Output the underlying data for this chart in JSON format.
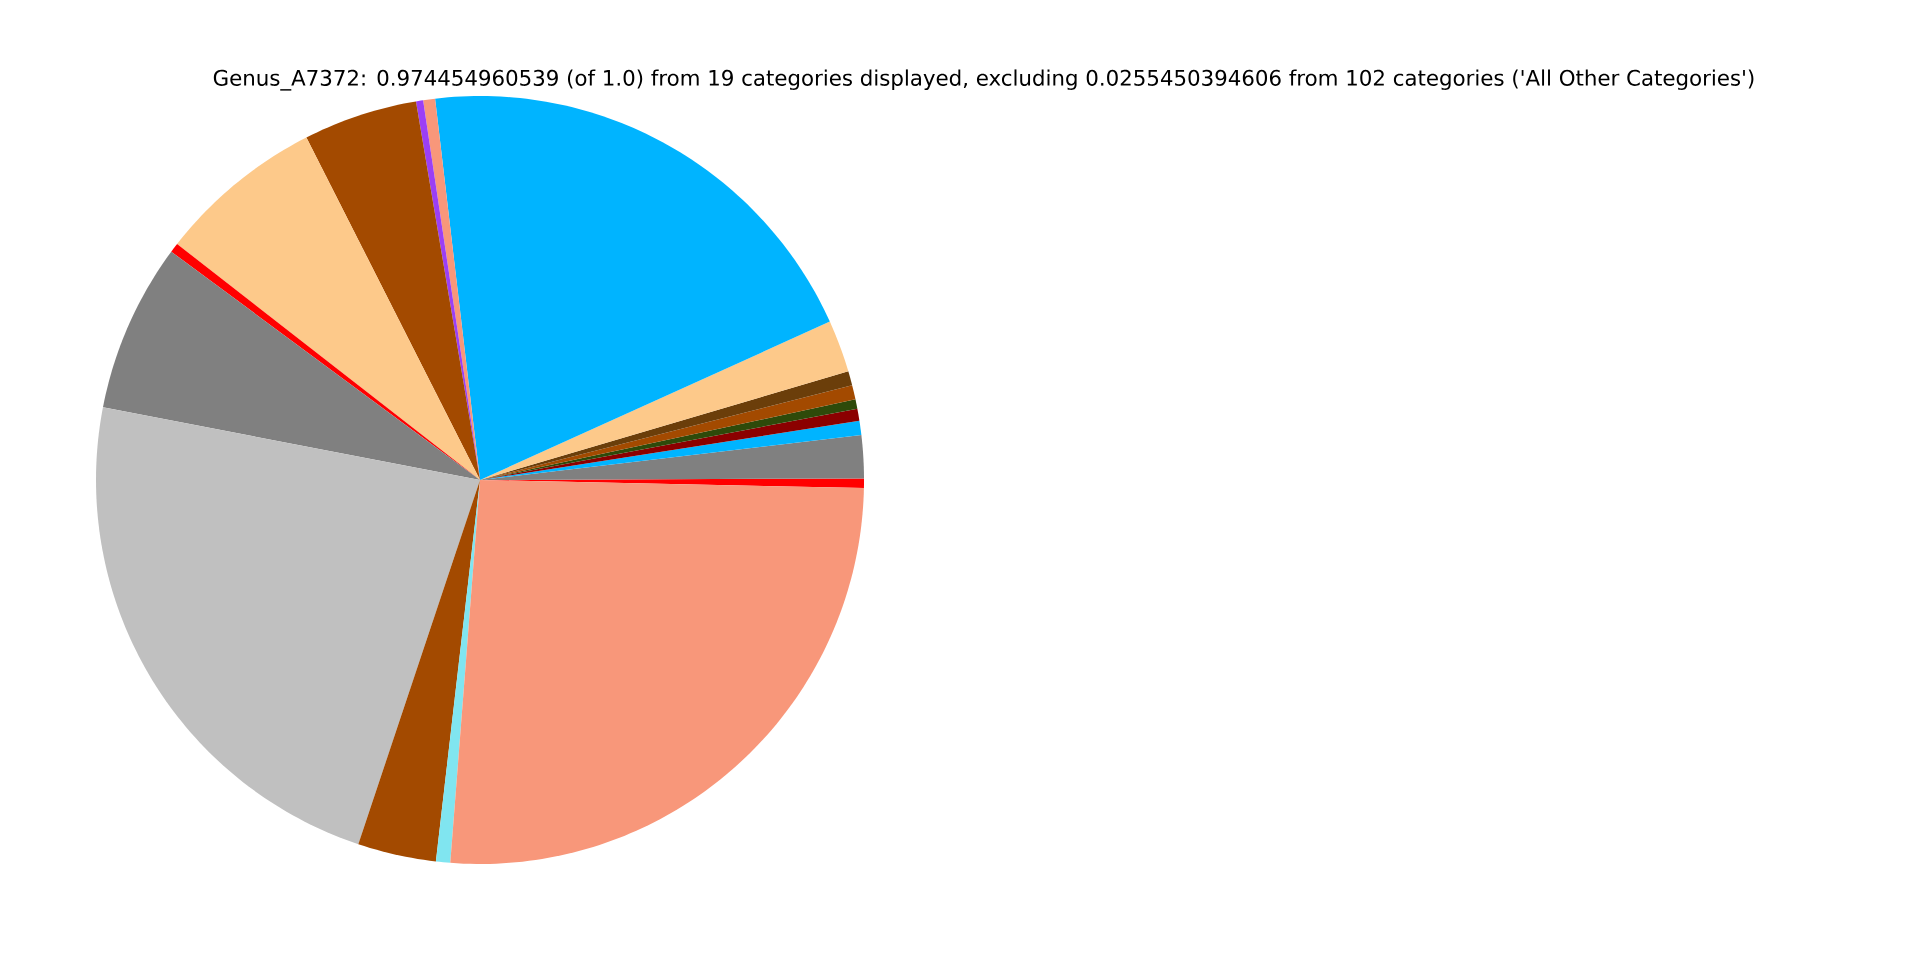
{
  "chart_data": {
    "type": "pie",
    "title": "Genus_A7372: 0.974454960539 (of 1.0) from 19 categories displayed, excluding 0.0255450394606 from 102 categories ('All Other Categories')",
    "categories": [
      null,
      null,
      null,
      null,
      null,
      null,
      null,
      null,
      null,
      null,
      null,
      null,
      null,
      null,
      null,
      null,
      null,
      null,
      null
    ],
    "values": [
      0.4,
      1.8,
      0.6,
      0.5,
      0.4,
      0.6,
      0.6,
      2.2,
      20.1,
      0.5,
      0.3,
      4.8,
      7.0,
      0.4,
      7.1,
      22.9,
      3.3,
      0.6,
      25.9
    ],
    "colors": [
      "#ff0000",
      "#808080",
      "#00b4ff",
      "#8b0000",
      "#2e4a0a",
      "#a34a00",
      "#6b3e0a",
      "#fdc98a",
      "#00b4ff",
      "#f8977a",
      "#9b3ff5",
      "#a34a00",
      "#fdc98a",
      "#ff0000",
      "#808080",
      "#c0c0c0",
      "#a34a00",
      "#80e5f0",
      "#f8977a"
    ]
  }
}
